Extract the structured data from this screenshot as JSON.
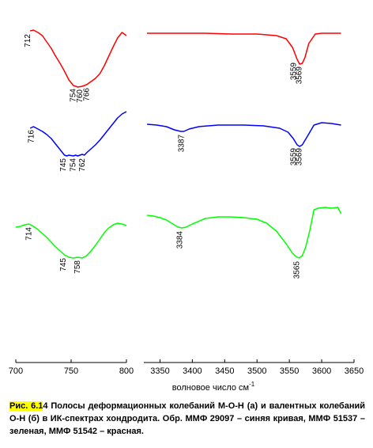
{
  "chart_data": [
    {
      "type": "line",
      "panel": "left",
      "xlim": [
        700,
        800
      ],
      "xticks": [
        700,
        750,
        800
      ],
      "y_units": "arbitrary (offset spectra)",
      "series": [
        {
          "color": "#ff0000",
          "x": [
            713,
            716,
            720,
            724,
            728,
            732,
            736,
            740,
            744,
            748,
            752,
            756,
            760,
            764,
            768,
            772,
            776,
            780,
            784,
            788,
            792,
            796,
            800
          ],
          "y": [
            0.96,
            0.97,
            0.94,
            0.9,
            0.82,
            0.74,
            0.64,
            0.55,
            0.45,
            0.34,
            0.27,
            0.25,
            0.26,
            0.28,
            0.32,
            0.36,
            0.42,
            0.52,
            0.64,
            0.76,
            0.87,
            0.94,
            0.9
          ],
          "peak_labels": [
            {
              "text": "712",
              "x": 713
            },
            {
              "text": "754",
              "x": 754
            },
            {
              "text": "760",
              "x": 760
            },
            {
              "text": "766",
              "x": 766
            }
          ]
        },
        {
          "color": "#0000ff",
          "x": [
            713,
            716,
            720,
            724,
            728,
            732,
            736,
            740,
            744,
            746,
            748,
            752,
            754,
            756,
            760,
            762,
            764,
            768,
            772,
            776,
            780,
            784,
            788,
            792,
            796,
            800
          ],
          "y": [
            0.68,
            0.7,
            0.67,
            0.64,
            0.6,
            0.55,
            0.48,
            0.41,
            0.34,
            0.33,
            0.34,
            0.33,
            0.34,
            0.33,
            0.35,
            0.34,
            0.37,
            0.42,
            0.47,
            0.53,
            0.6,
            0.67,
            0.74,
            0.81,
            0.86,
            0.89
          ],
          "peak_labels": [
            {
              "text": "716",
              "x": 716
            },
            {
              "text": "745",
              "x": 745
            },
            {
              "text": "754",
              "x": 754
            },
            {
              "text": "762",
              "x": 762
            }
          ]
        },
        {
          "color": "#00ff00",
          "x": [
            700,
            704,
            708,
            712,
            716,
            720,
            724,
            728,
            732,
            736,
            740,
            744,
            748,
            752,
            756,
            760,
            764,
            768,
            772,
            776,
            780,
            784,
            788,
            792,
            796,
            800
          ],
          "y": [
            0.33,
            0.34,
            0.36,
            0.37,
            0.34,
            0.3,
            0.25,
            0.2,
            0.14,
            0.08,
            0.03,
            -0.02,
            -0.05,
            -0.06,
            -0.05,
            -0.06,
            -0.03,
            0.03,
            0.1,
            0.18,
            0.26,
            0.32,
            0.36,
            0.38,
            0.37,
            0.35
          ],
          "peak_labels": [
            {
              "text": "714",
              "x": 714
            },
            {
              "text": "745",
              "x": 745
            },
            {
              "text": "758",
              "x": 758
            }
          ]
        }
      ]
    },
    {
      "type": "line",
      "panel": "right",
      "xlim": [
        3325,
        3650
      ],
      "xticks": [
        3350,
        3400,
        3450,
        3500,
        3550,
        3600,
        3650
      ],
      "xlabel": "волновое число см",
      "xlabel_superscript": "-1",
      "y_units": "arbitrary (offset spectra)",
      "series": [
        {
          "color": "#ff0000",
          "x": [
            3330,
            3350,
            3380,
            3420,
            3460,
            3500,
            3530,
            3545,
            3555,
            3562,
            3566,
            3570,
            3574,
            3580,
            3590,
            3600,
            3610,
            3620,
            3630
          ],
          "y": [
            0.93,
            0.93,
            0.93,
            0.93,
            0.92,
            0.92,
            0.9,
            0.86,
            0.75,
            0.6,
            0.54,
            0.55,
            0.62,
            0.8,
            0.92,
            0.93,
            0.93,
            0.93,
            0.93
          ],
          "peak_labels": [
            {
              "text": "3559",
              "x": 3560
            },
            {
              "text": "3569",
              "x": 3569
            }
          ]
        },
        {
          "color": "#0000ff",
          "x": [
            3330,
            3345,
            3360,
            3372,
            3382,
            3387,
            3395,
            3410,
            3440,
            3480,
            3510,
            3535,
            3548,
            3556,
            3562,
            3566,
            3570,
            3578,
            3588,
            3600,
            3615,
            3630
          ],
          "y": [
            0.73,
            0.72,
            0.7,
            0.66,
            0.64,
            0.64,
            0.67,
            0.7,
            0.72,
            0.72,
            0.71,
            0.68,
            0.63,
            0.55,
            0.47,
            0.45,
            0.47,
            0.58,
            0.72,
            0.75,
            0.74,
            0.72
          ],
          "peak_labels": [
            {
              "text": "3387",
              "x": 3387
            },
            {
              "text": "3559",
              "x": 3560
            },
            {
              "text": "3569",
              "x": 3569
            }
          ]
        },
        {
          "color": "#00ff00",
          "x": [
            3330,
            3340,
            3350,
            3360,
            3370,
            3378,
            3384,
            3390,
            3400,
            3420,
            3440,
            3460,
            3480,
            3500,
            3515,
            3530,
            3545,
            3555,
            3560,
            3565,
            3570,
            3575,
            3582,
            3588,
            3595,
            3605,
            3615,
            3625,
            3630
          ],
          "y": [
            0.48,
            0.47,
            0.45,
            0.42,
            0.37,
            0.33,
            0.32,
            0.33,
            0.37,
            0.44,
            0.46,
            0.46,
            0.45,
            0.43,
            0.38,
            0.28,
            0.12,
            0.0,
            -0.04,
            -0.06,
            -0.03,
            0.07,
            0.3,
            0.55,
            0.57,
            0.58,
            0.57,
            0.58,
            0.5
          ],
          "peak_labels": [
            {
              "text": "3384",
              "x": 3384
            },
            {
              "text": "3565",
              "x": 3565
            }
          ]
        }
      ]
    }
  ],
  "caption": {
    "highlight": "Рис. 6.1",
    "text": "4 Полосы деформационных колебаний М-О-Н (а) и валентных колебаний О-Н (б) в ИК-спектрах хондродита. Обр. ММФ 29097 – синяя кривая, ММФ 51537 – зеленая, ММФ 51542 – красная."
  }
}
